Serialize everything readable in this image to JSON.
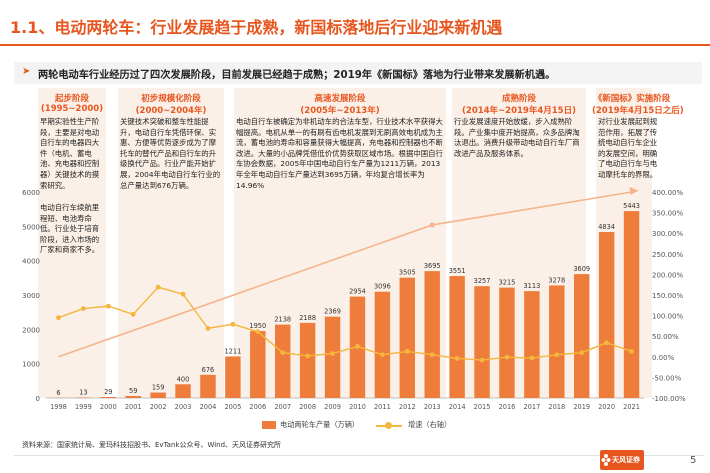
{
  "header": {
    "title": "1.1、电动两轮车：行业发展趋于成熟，新国标落地后行业迎来新机遇",
    "subtitle": "两轮电动车行业经历过了四次发展阶段，目前发展已经趋于成熟；2019年《新国标》落地为行业带来发展新机遇。"
  },
  "stages": [
    {
      "title": "起步阶段",
      "years": "(1995~2000)",
      "text": "早期实验性生产阶段，主要是对电动自行车的电器四大件（电机、蓄电池、充电器和控制器）关键技术的摸索研究。",
      "text2": "电动自行车续航里程短、电池寿命低。行业处于培育阶段，进入市场的厂家和商家不多。"
    },
    {
      "title": "初步规模化阶段",
      "years": "(2000~2004年)",
      "text": "关键技术突破和整车性能提升，电动自行车凭借环保、实惠、方便等优势逐步成为了摩托车的替代产品和自行车的升级换代产品。行业产能开始扩展，2004年电动自行车行业的总产量达到676万辆。"
    },
    {
      "title": "高速发展阶段",
      "years": "(2005年~2013年)",
      "text": "电动自行车被确定为非机动车的合法车型，行业技术水平获得大幅提高。电机从单一的有刷有齿电机发展到无刷高效电机成为主流，蓄电池的寿命和容量获得大幅提高，充电器和控制器也不断改进。大量的小品牌凭借低价优势获取区域市场。根据中国自行车协会数据，2005年中国电动自行车产量为1211万辆，2013年全年电动自行车产量达到3695万辆，年均复合增长率为14.96%"
    },
    {
      "title": "成熟阶段",
      "years": "(2014年~2019年4月15日)",
      "text": "行业发展速度开始放缓，步入成熟阶段。产业集中度开始提高，众多品牌淘汰退出。消费升级带动电动自行车厂商改进产品及服务体系。"
    },
    {
      "title": "《新国标》实施阶段",
      "years": "(2019年4月15日之后)",
      "text": "对行业发展起到规范作用，拓展了传统电动自行车企业的发展空间，明确了电动自行车与电动摩托车的界限。"
    }
  ],
  "chart_data": {
    "type": "bar",
    "categories": [
      "1998",
      "1999",
      "2000",
      "2001",
      "2002",
      "2003",
      "2004",
      "2005",
      "2006",
      "2007",
      "2008",
      "2009",
      "2010",
      "2011",
      "2012",
      "2013",
      "2014",
      "2015",
      "2016",
      "2017",
      "2018",
      "2019",
      "2020",
      "2021"
    ],
    "series": [
      {
        "name": "电动两轮车产量（万辆）",
        "type": "bar",
        "axis": "left",
        "values": [
          6,
          13,
          29,
          59,
          159,
          400,
          676,
          1211,
          1950,
          2138,
          2188,
          2369,
          2954,
          3096,
          3505,
          3695,
          3551,
          3257,
          3215,
          3113,
          3278,
          3609,
          4834,
          5443
        ]
      },
      {
        "name": "增速（右轴）",
        "type": "line",
        "axis": "right",
        "values": [
          0.95,
          1.17,
          1.23,
          1.03,
          1.69,
          1.52,
          0.69,
          0.79,
          0.61,
          0.1,
          0.02,
          0.08,
          0.25,
          0.05,
          0.13,
          0.05,
          -0.04,
          -0.08,
          -0.01,
          -0.03,
          0.05,
          0.1,
          0.34,
          0.13
        ]
      }
    ],
    "yticks_left": [
      "0",
      "1000",
      "2000",
      "3000",
      "4000",
      "5000",
      "6000"
    ],
    "ylim_left": [
      0,
      6000
    ],
    "yticks_right": [
      "-100.00%",
      "-50.00%",
      "0.00%",
      "50.00%",
      "100.00%",
      "150.00%",
      "200.00%",
      "250.00%",
      "300.00%",
      "350.00%",
      "400.00%"
    ],
    "ylim_right": [
      -1.0,
      4.0
    ],
    "trend_line": {
      "from": [
        "1998",
        0.0
      ],
      "via": [
        "2013",
        3.2
      ],
      "to": [
        "2021",
        4.0
      ]
    },
    "legend_position": "bottom",
    "colors": {
      "bar": "#EE7D3B",
      "line": "#F4B63C",
      "trend": "#F6B48C",
      "accent": "#E8561F"
    }
  },
  "footer": {
    "source": "资料来源：国家统计局、爱玛科技招股书、EvTank公众号、Wind、天风证券研究所",
    "logo_text": "天风证券",
    "page": "5"
  }
}
